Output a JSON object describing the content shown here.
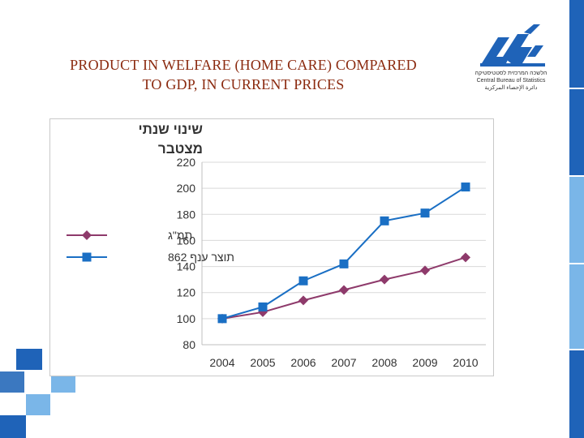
{
  "title": {
    "line1": "PRODUCT IN WELFARE (HOME CARE) COMPARED",
    "line2": "TO GDP,  IN CURRENT PRICES"
  },
  "logo": {
    "hebrew": "הלשכה המרכזית לסטטיסטיקה",
    "english": "Central Bureau of Statistics",
    "arabic": "دائرة الإحصاء المركزية"
  },
  "colors": {
    "title": "#8b2a0f",
    "series_gdp": "#8e3a6b",
    "series_product": "#1a6fc4",
    "accent_blue": "#1f63b8",
    "accent_light": "#7ab6e8"
  },
  "chart_data": {
    "type": "line",
    "ylabel_line1": "שינוי שנתי",
    "ylabel_line2": "מצטבר",
    "ylim": [
      80,
      220
    ],
    "yticks": [
      80,
      100,
      120,
      140,
      160,
      180,
      200,
      220
    ],
    "x": [
      "2004",
      "2005",
      "2006",
      "2007",
      "2008",
      "2009",
      "2010"
    ],
    "grid": "horizontal",
    "legend_position": "left",
    "series": [
      {
        "name": "תמ\"ג",
        "marker": "diamond",
        "values": [
          100,
          105,
          114,
          122,
          130,
          137,
          147
        ]
      },
      {
        "name": "תוצר ענף 862",
        "marker": "square",
        "values": [
          100,
          109,
          129,
          142,
          175,
          181,
          201
        ]
      }
    ]
  }
}
